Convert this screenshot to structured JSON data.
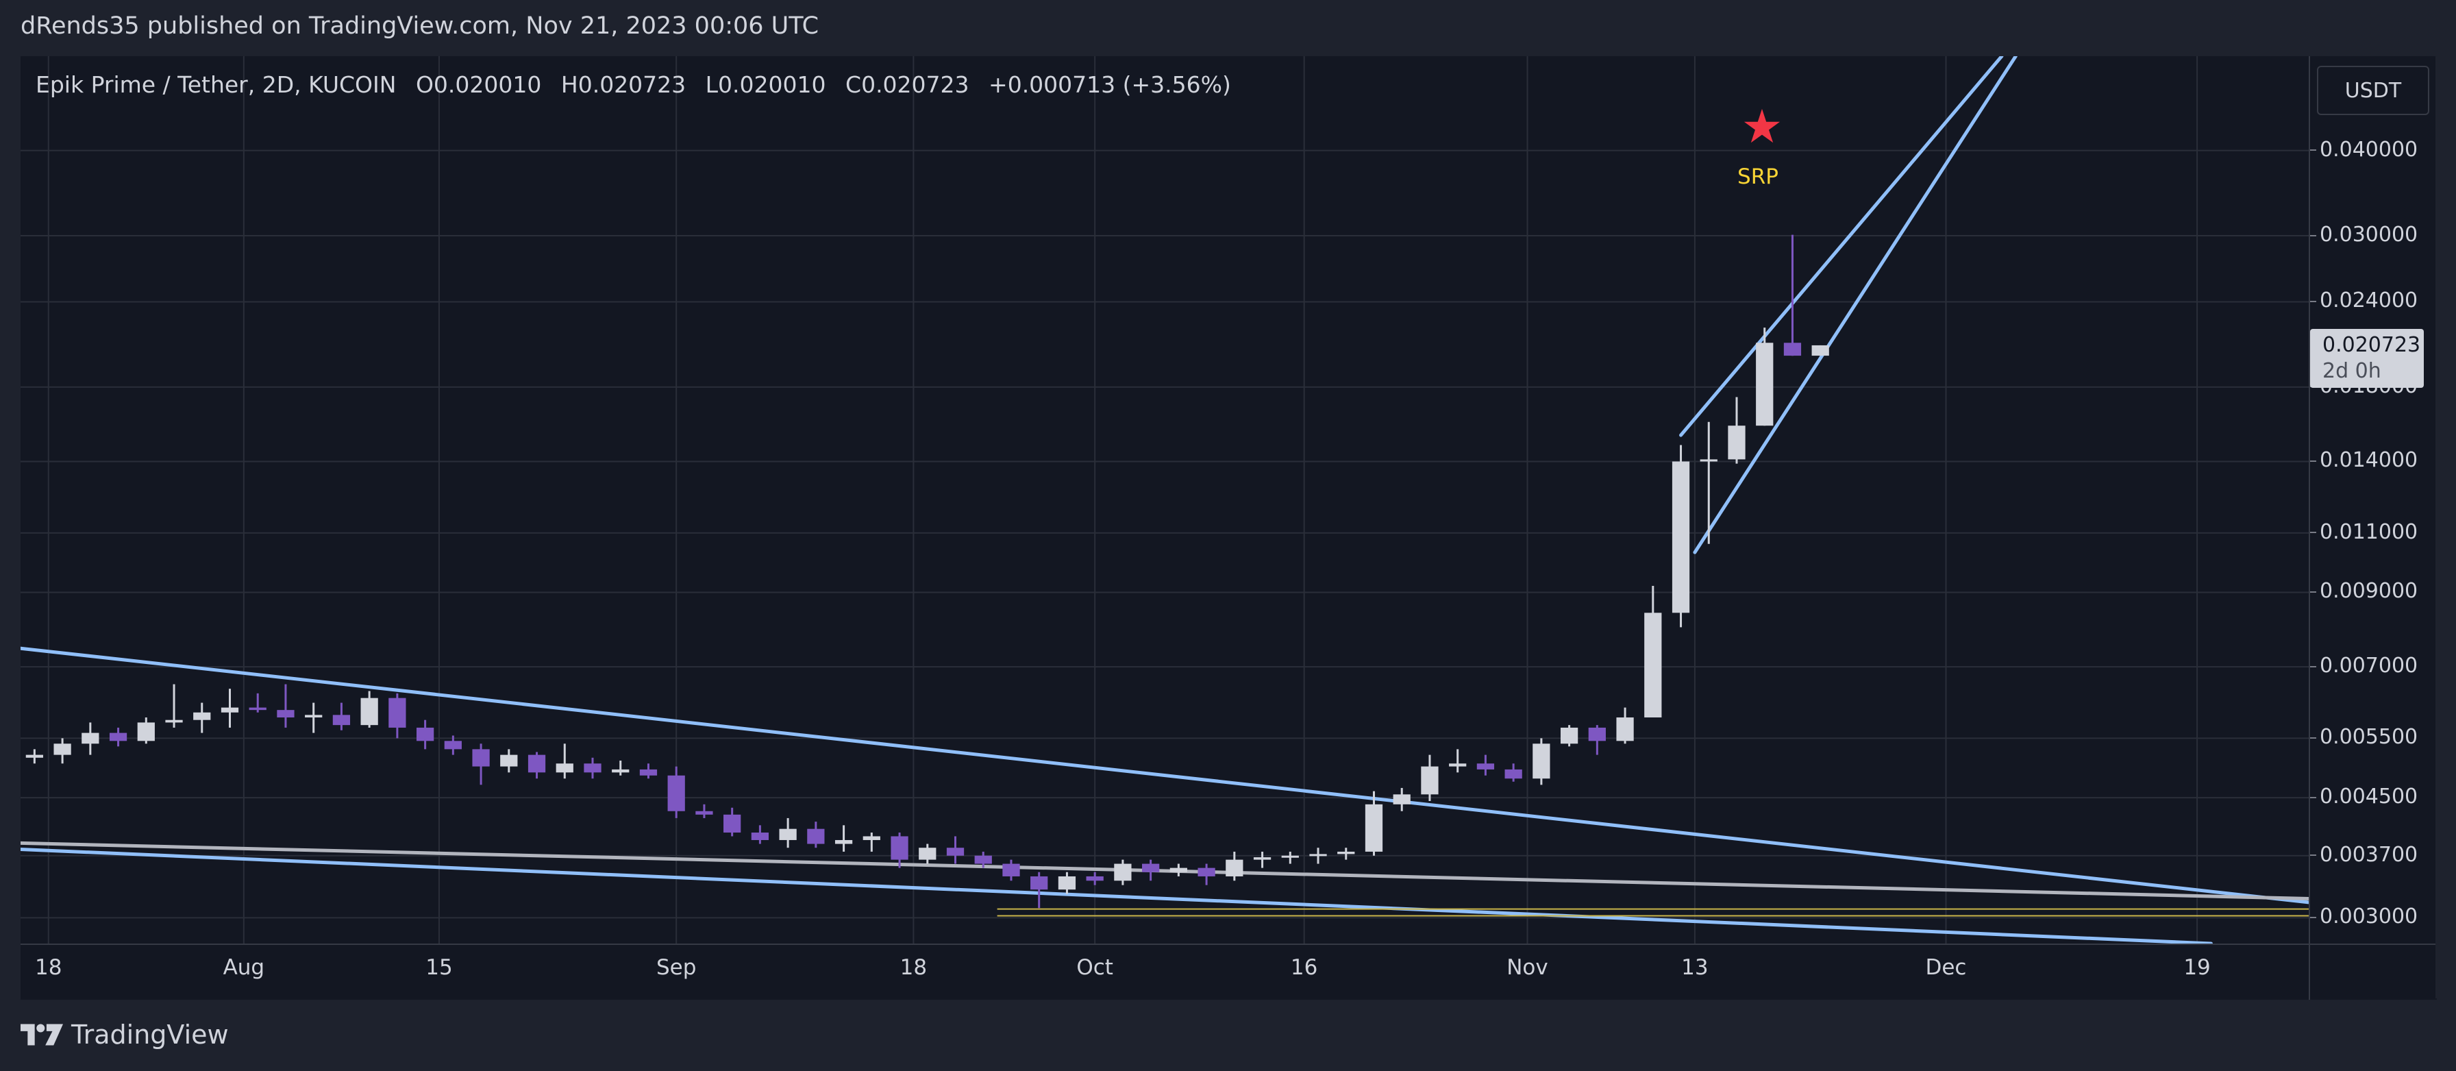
{
  "header": {
    "published_text": "dRends35 published on TradingView.com, Nov 21, 2023 00:06 UTC"
  },
  "legend": {
    "symbol": "Epik Prime / Tether, 2D, KUCOIN",
    "open": "O0.020010",
    "high": "H0.020723",
    "low": "L0.020010",
    "close": "C0.020723",
    "change": "+0.000713 (+3.56%)"
  },
  "currency_button": "USDT",
  "last_price": {
    "price": "0.020723",
    "countdown": "2d 0h"
  },
  "annotation": {
    "label": "SRP",
    "icon": "star-icon"
  },
  "footer": {
    "brand": "TradingView"
  },
  "colors": {
    "background": "#131722",
    "grid": "#2a2e39",
    "up_candle": "#d1d4dc",
    "down_candle": "#7e57c2",
    "trendline": "#90bff9",
    "horizontal_line": "#b2b5be",
    "support_line": "#c9b44a",
    "star": "#f23645",
    "srp_text": "#f9d535"
  },
  "chart_data": {
    "type": "candlestick",
    "title": "Epik Prime / Tether, 2D, KUCOIN",
    "price_scale": "log",
    "grid": true,
    "ylim": [
      0.00275,
      0.055
    ],
    "y_ticks": [
      "0.040000",
      "0.030000",
      "0.024000",
      "0.018000",
      "0.014000",
      "0.011000",
      "0.009000",
      "0.007000",
      "0.005500",
      "0.004500",
      "0.003700",
      "0.003000"
    ],
    "x_ticks": [
      {
        "label": "18",
        "date": "2023-07-18"
      },
      {
        "label": "Aug",
        "date": "2023-08-01"
      },
      {
        "label": "15",
        "date": "2023-08-15"
      },
      {
        "label": "Sep",
        "date": "2023-09-01"
      },
      {
        "label": "18",
        "date": "2023-09-18"
      },
      {
        "label": "Oct",
        "date": "2023-10-01"
      },
      {
        "label": "16",
        "date": "2023-10-16"
      },
      {
        "label": "Nov",
        "date": "2023-11-01"
      },
      {
        "label": "13",
        "date": "2023-11-13"
      },
      {
        "label": "Dec",
        "date": "2023-12-01"
      },
      {
        "label": "19",
        "date": "2023-12-19"
      }
    ],
    "xlim": [
      "2023-07-16",
      "2023-12-27"
    ],
    "candles": [
      {
        "date": "2023-07-17",
        "o": 0.00515,
        "h": 0.0053,
        "l": 0.00505,
        "c": 0.0052
      },
      {
        "date": "2023-07-19",
        "o": 0.0052,
        "h": 0.0055,
        "l": 0.00505,
        "c": 0.0054
      },
      {
        "date": "2023-07-21",
        "o": 0.0054,
        "h": 0.0058,
        "l": 0.0052,
        "c": 0.0056
      },
      {
        "date": "2023-07-23",
        "o": 0.0056,
        "h": 0.0057,
        "l": 0.00535,
        "c": 0.00545
      },
      {
        "date": "2023-07-25",
        "o": 0.00545,
        "h": 0.0059,
        "l": 0.0054,
        "c": 0.0058
      },
      {
        "date": "2023-07-27",
        "o": 0.0058,
        "h": 0.0066,
        "l": 0.0057,
        "c": 0.00585
      },
      {
        "date": "2023-07-29",
        "o": 0.00585,
        "h": 0.0062,
        "l": 0.0056,
        "c": 0.006
      },
      {
        "date": "2023-07-31",
        "o": 0.006,
        "h": 0.0065,
        "l": 0.0057,
        "c": 0.0061
      },
      {
        "date": "2023-08-02",
        "o": 0.0061,
        "h": 0.0064,
        "l": 0.006,
        "c": 0.00605
      },
      {
        "date": "2023-08-04",
        "o": 0.00605,
        "h": 0.0066,
        "l": 0.0057,
        "c": 0.0059
      },
      {
        "date": "2023-08-06",
        "o": 0.0059,
        "h": 0.0062,
        "l": 0.0056,
        "c": 0.00595
      },
      {
        "date": "2023-08-08",
        "o": 0.00595,
        "h": 0.0062,
        "l": 0.00565,
        "c": 0.00575
      },
      {
        "date": "2023-08-10",
        "o": 0.00575,
        "h": 0.00645,
        "l": 0.0057,
        "c": 0.0063
      },
      {
        "date": "2023-08-12",
        "o": 0.0063,
        "h": 0.0064,
        "l": 0.0055,
        "c": 0.0057
      },
      {
        "date": "2023-08-14",
        "o": 0.0057,
        "h": 0.00585,
        "l": 0.0053,
        "c": 0.00545
      },
      {
        "date": "2023-08-16",
        "o": 0.00545,
        "h": 0.00555,
        "l": 0.0052,
        "c": 0.0053
      },
      {
        "date": "2023-08-18",
        "o": 0.0053,
        "h": 0.0054,
        "l": 0.0047,
        "c": 0.005
      },
      {
        "date": "2023-08-20",
        "o": 0.005,
        "h": 0.0053,
        "l": 0.0049,
        "c": 0.0052
      },
      {
        "date": "2023-08-22",
        "o": 0.0052,
        "h": 0.00525,
        "l": 0.0048,
        "c": 0.0049
      },
      {
        "date": "2023-08-24",
        "o": 0.0049,
        "h": 0.0054,
        "l": 0.0048,
        "c": 0.00505
      },
      {
        "date": "2023-08-26",
        "o": 0.00505,
        "h": 0.00515,
        "l": 0.0048,
        "c": 0.0049
      },
      {
        "date": "2023-08-28",
        "o": 0.0049,
        "h": 0.0051,
        "l": 0.00485,
        "c": 0.00495
      },
      {
        "date": "2023-08-30",
        "o": 0.00495,
        "h": 0.00505,
        "l": 0.0048,
        "c": 0.00485
      },
      {
        "date": "2023-09-01",
        "o": 0.00485,
        "h": 0.005,
        "l": 0.0042,
        "c": 0.0043
      },
      {
        "date": "2023-09-03",
        "o": 0.0043,
        "h": 0.0044,
        "l": 0.0042,
        "c": 0.00425
      },
      {
        "date": "2023-09-05",
        "o": 0.00425,
        "h": 0.00435,
        "l": 0.00395,
        "c": 0.004
      },
      {
        "date": "2023-09-07",
        "o": 0.004,
        "h": 0.0041,
        "l": 0.00385,
        "c": 0.0039
      },
      {
        "date": "2023-09-09",
        "o": 0.0039,
        "h": 0.0042,
        "l": 0.0038,
        "c": 0.00405
      },
      {
        "date": "2023-09-11",
        "o": 0.00405,
        "h": 0.00415,
        "l": 0.0038,
        "c": 0.00385
      },
      {
        "date": "2023-09-13",
        "o": 0.00385,
        "h": 0.0041,
        "l": 0.00375,
        "c": 0.0039
      },
      {
        "date": "2023-09-15",
        "o": 0.0039,
        "h": 0.004,
        "l": 0.00375,
        "c": 0.00395
      },
      {
        "date": "2023-09-17",
        "o": 0.00395,
        "h": 0.004,
        "l": 0.00355,
        "c": 0.00365
      },
      {
        "date": "2023-09-19",
        "o": 0.00365,
        "h": 0.00385,
        "l": 0.0036,
        "c": 0.0038
      },
      {
        "date": "2023-09-21",
        "o": 0.0038,
        "h": 0.00395,
        "l": 0.0036,
        "c": 0.0037
      },
      {
        "date": "2023-09-23",
        "o": 0.0037,
        "h": 0.00375,
        "l": 0.00355,
        "c": 0.0036
      },
      {
        "date": "2023-09-25",
        "o": 0.0036,
        "h": 0.00365,
        "l": 0.0034,
        "c": 0.00345
      },
      {
        "date": "2023-09-27",
        "o": 0.00345,
        "h": 0.0035,
        "l": 0.0031,
        "c": 0.0033
      },
      {
        "date": "2023-09-29",
        "o": 0.0033,
        "h": 0.0035,
        "l": 0.00325,
        "c": 0.00345
      },
      {
        "date": "2023-10-01",
        "o": 0.00345,
        "h": 0.0035,
        "l": 0.00335,
        "c": 0.0034
      },
      {
        "date": "2023-10-03",
        "o": 0.0034,
        "h": 0.00365,
        "l": 0.00335,
        "c": 0.0036
      },
      {
        "date": "2023-10-05",
        "o": 0.0036,
        "h": 0.00365,
        "l": 0.0034,
        "c": 0.0035
      },
      {
        "date": "2023-10-07",
        "o": 0.0035,
        "h": 0.0036,
        "l": 0.00345,
        "c": 0.00355
      },
      {
        "date": "2023-10-09",
        "o": 0.00355,
        "h": 0.0036,
        "l": 0.00335,
        "c": 0.00345
      },
      {
        "date": "2023-10-11",
        "o": 0.00345,
        "h": 0.00375,
        "l": 0.0034,
        "c": 0.00365
      },
      {
        "date": "2023-10-13",
        "o": 0.00365,
        "h": 0.00375,
        "l": 0.00355,
        "c": 0.00368
      },
      {
        "date": "2023-10-15",
        "o": 0.00368,
        "h": 0.00375,
        "l": 0.0036,
        "c": 0.0037
      },
      {
        "date": "2023-10-17",
        "o": 0.0037,
        "h": 0.0038,
        "l": 0.0036,
        "c": 0.00372
      },
      {
        "date": "2023-10-19",
        "o": 0.00372,
        "h": 0.0038,
        "l": 0.00365,
        "c": 0.00375
      },
      {
        "date": "2023-10-21",
        "o": 0.00375,
        "h": 0.0046,
        "l": 0.0037,
        "c": 0.0044
      },
      {
        "date": "2023-10-23",
        "o": 0.0044,
        "h": 0.00465,
        "l": 0.0043,
        "c": 0.00455
      },
      {
        "date": "2023-10-25",
        "o": 0.00455,
        "h": 0.0052,
        "l": 0.00445,
        "c": 0.005
      },
      {
        "date": "2023-10-27",
        "o": 0.005,
        "h": 0.0053,
        "l": 0.0049,
        "c": 0.00505
      },
      {
        "date": "2023-10-29",
        "o": 0.00505,
        "h": 0.0052,
        "l": 0.00485,
        "c": 0.00495
      },
      {
        "date": "2023-10-31",
        "o": 0.00495,
        "h": 0.00505,
        "l": 0.00475,
        "c": 0.0048
      },
      {
        "date": "2023-11-02",
        "o": 0.0048,
        "h": 0.0055,
        "l": 0.0047,
        "c": 0.0054
      },
      {
        "date": "2023-11-04",
        "o": 0.0054,
        "h": 0.00575,
        "l": 0.00535,
        "c": 0.0057
      },
      {
        "date": "2023-11-06",
        "o": 0.0057,
        "h": 0.00575,
        "l": 0.0052,
        "c": 0.00545
      },
      {
        "date": "2023-11-08",
        "o": 0.00545,
        "h": 0.0061,
        "l": 0.0054,
        "c": 0.0059
      },
      {
        "date": "2023-11-10",
        "o": 0.0059,
        "h": 0.0092,
        "l": 0.0059,
        "c": 0.0084
      },
      {
        "date": "2023-11-12",
        "o": 0.0084,
        "h": 0.0148,
        "l": 0.008,
        "c": 0.014
      },
      {
        "date": "2023-11-14",
        "o": 0.014,
        "h": 0.016,
        "l": 0.0106,
        "c": 0.0141
      },
      {
        "date": "2023-11-16",
        "o": 0.0141,
        "h": 0.0174,
        "l": 0.0139,
        "c": 0.0158
      },
      {
        "date": "2023-11-18",
        "o": 0.0158,
        "h": 0.022,
        "l": 0.0158,
        "c": 0.0209
      },
      {
        "date": "2023-11-20",
        "o": 0.0209,
        "h": 0.0301,
        "l": 0.02,
        "c": 0.02001
      },
      {
        "date": "2023-11-22",
        "o": 0.02001,
        "h": 0.020723,
        "l": 0.02001,
        "c": 0.020723
      }
    ],
    "trendlines": [
      {
        "name": "descending-resistance",
        "points": [
          [
            "2023-07-16",
            0.00745
          ],
          [
            "2023-12-27",
            0.00316
          ]
        ]
      },
      {
        "name": "descending-support",
        "points": [
          [
            "2023-07-16",
            0.00378
          ],
          [
            "2023-12-20",
            0.00275
          ]
        ]
      },
      {
        "name": "horizontal-line",
        "points": [
          [
            "2023-07-16",
            0.00386
          ],
          [
            "2023-12-27",
            0.0032
          ]
        ]
      },
      {
        "name": "wedge-upper",
        "points": [
          [
            "2023-11-12",
            0.0153
          ],
          [
            "2023-12-05",
            0.055
          ]
        ]
      },
      {
        "name": "wedge-lower",
        "points": [
          [
            "2023-11-13",
            0.0103
          ],
          [
            "2023-12-06",
            0.055
          ]
        ]
      }
    ],
    "support_levels": [
      {
        "name": "support-level-upper",
        "from": "2023-09-24",
        "to": "2023-12-27",
        "price": 0.00309
      },
      {
        "name": "support-level-lower",
        "from": "2023-09-24",
        "to": "2023-12-27",
        "price": 0.00302
      }
    ],
    "annotations": [
      {
        "text": "SRP",
        "date": "2023-11-20",
        "icon": "star"
      }
    ]
  }
}
